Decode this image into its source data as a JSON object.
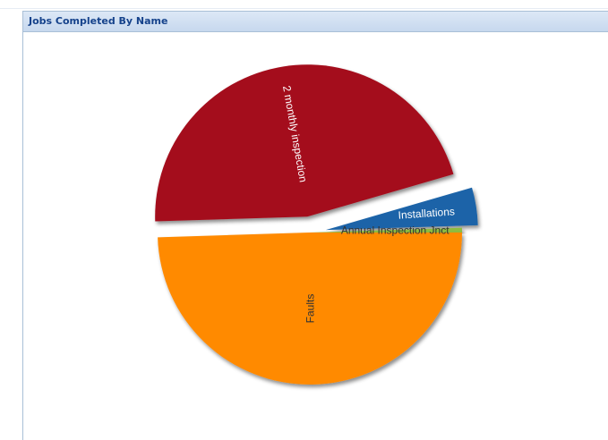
{
  "panel": {
    "title": "Jobs Completed By Name"
  },
  "colors": {
    "panel_border": "#a9bfd6",
    "title_text": "#15428b"
  },
  "chart_data": {
    "type": "pie",
    "title": "",
    "legend": "none",
    "slices": [
      {
        "label": "2 monthly inspection",
        "value": 46.0,
        "color": "#a4111e",
        "label_color": "#ffffff",
        "exploded": true
      },
      {
        "label": "Installations",
        "value": 4.0,
        "color": "#1a64a8",
        "label_color": "#ffffff",
        "exploded": true
      },
      {
        "label": "Annual Inspection Jnct",
        "value": 0.5,
        "color": "#8fbc3f",
        "label_color": "#333333",
        "exploded": false
      },
      {
        "label": "Faults",
        "value": 49.5,
        "color": "#ff8a00",
        "label_color": "#333333",
        "exploded": false
      }
    ]
  }
}
